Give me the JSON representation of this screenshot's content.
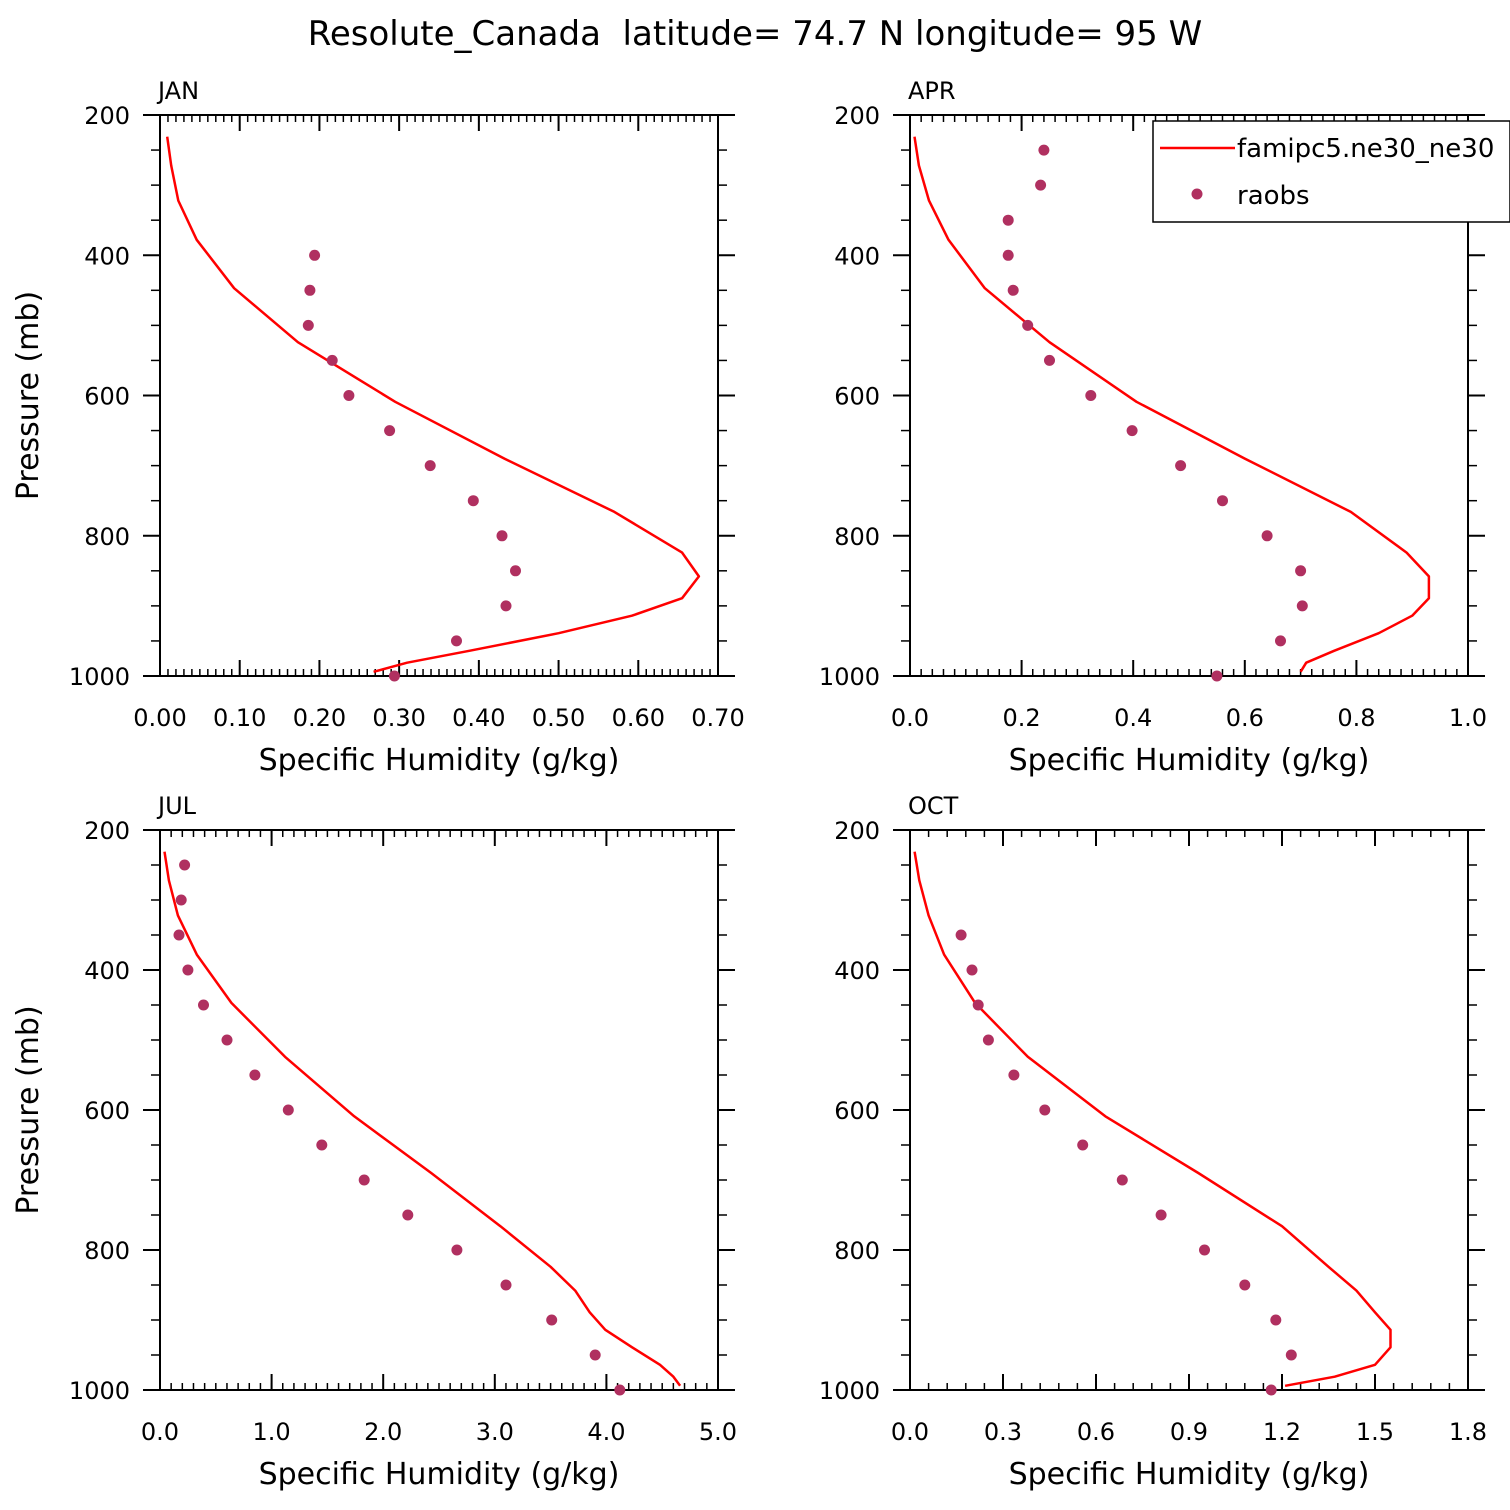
{
  "figure": {
    "title": "Resolute_Canada  latitude= 74.7 N longitude= 95 W"
  },
  "legend": {
    "model_label": "famipc5.ne30_ne30",
    "obs_label": "raobs",
    "model_color": "#ff0000",
    "obs_color": "#b03060"
  },
  "chart_data": [
    {
      "type": "line+scatter",
      "panel": "JAN",
      "xlabel": "Specific Humidity (g/kg)",
      "ylabel": "Pressure (mb)",
      "xlim": [
        0,
        0.7
      ],
      "ylim": [
        200,
        1000
      ],
      "xticks": [
        0,
        0.1,
        0.2,
        0.3,
        0.4,
        0.5,
        0.6,
        0.7
      ],
      "xtick_labels": [
        "0.00",
        "0.10",
        "0.20",
        "0.30",
        "0.40",
        "0.50",
        "0.60",
        "0.70"
      ],
      "x_minor_step": 0.01,
      "yticks": [
        200,
        400,
        600,
        800,
        1000
      ],
      "ytick_labels": [
        "200",
        "400",
        "600",
        "800",
        "1000"
      ],
      "model": [
        [
          0.009,
          231
        ],
        [
          0.014,
          272
        ],
        [
          0.023,
          322
        ],
        [
          0.046,
          378
        ],
        [
          0.093,
          447
        ],
        [
          0.173,
          524
        ],
        [
          0.295,
          609
        ],
        [
          0.432,
          690
        ],
        [
          0.57,
          766
        ],
        [
          0.655,
          824
        ],
        [
          0.676,
          858
        ],
        [
          0.655,
          889
        ],
        [
          0.592,
          914
        ],
        [
          0.5,
          939
        ],
        [
          0.388,
          964
        ],
        [
          0.31,
          981
        ],
        [
          0.268,
          994
        ]
      ],
      "obs": [
        [
          0.194,
          400
        ],
        [
          0.188,
          450
        ],
        [
          0.186,
          500
        ],
        [
          0.216,
          550
        ],
        [
          0.237,
          600
        ],
        [
          0.288,
          650
        ],
        [
          0.339,
          700
        ],
        [
          0.393,
          750
        ],
        [
          0.429,
          800
        ],
        [
          0.446,
          850
        ],
        [
          0.434,
          900
        ],
        [
          0.372,
          950
        ],
        [
          0.294,
          1000
        ]
      ]
    },
    {
      "type": "line+scatter",
      "panel": "APR",
      "xlabel": "Specific Humidity (g/kg)",
      "ylabel": "",
      "xlim": [
        0,
        1.0
      ],
      "ylim": [
        200,
        1000
      ],
      "xticks": [
        0,
        0.2,
        0.4,
        0.6,
        0.8,
        1.0
      ],
      "xtick_labels": [
        "0.0",
        "0.2",
        "0.4",
        "0.6",
        "0.8",
        "1.0"
      ],
      "x_minor_step": 0.02,
      "yticks": [
        200,
        400,
        600,
        800,
        1000
      ],
      "ytick_labels": [
        "200",
        "400",
        "600",
        "800",
        "1000"
      ],
      "model": [
        [
          0.008,
          231
        ],
        [
          0.016,
          272
        ],
        [
          0.034,
          322
        ],
        [
          0.069,
          378
        ],
        [
          0.134,
          447
        ],
        [
          0.25,
          524
        ],
        [
          0.406,
          609
        ],
        [
          0.6,
          690
        ],
        [
          0.79,
          766
        ],
        [
          0.89,
          824
        ],
        [
          0.93,
          858
        ],
        [
          0.93,
          889
        ],
        [
          0.9,
          914
        ],
        [
          0.84,
          939
        ],
        [
          0.76,
          964
        ],
        [
          0.71,
          981
        ],
        [
          0.7,
          994
        ]
      ],
      "obs": [
        [
          0.24,
          250
        ],
        [
          0.234,
          300
        ],
        [
          0.176,
          350
        ],
        [
          0.176,
          400
        ],
        [
          0.185,
          450
        ],
        [
          0.211,
          500
        ],
        [
          0.25,
          550
        ],
        [
          0.324,
          600
        ],
        [
          0.398,
          650
        ],
        [
          0.485,
          700
        ],
        [
          0.56,
          750
        ],
        [
          0.64,
          800
        ],
        [
          0.7,
          850
        ],
        [
          0.703,
          900
        ],
        [
          0.664,
          950
        ],
        [
          0.55,
          1000
        ]
      ]
    },
    {
      "type": "line+scatter",
      "panel": "JUL",
      "xlabel": "Specific Humidity (g/kg)",
      "ylabel": "Pressure (mb)",
      "xlim": [
        0,
        5.0
      ],
      "ylim": [
        200,
        1000
      ],
      "xticks": [
        0,
        1,
        2,
        3,
        4,
        5
      ],
      "xtick_labels": [
        "0.0",
        "1.0",
        "2.0",
        "3.0",
        "4.0",
        "5.0"
      ],
      "x_minor_step": 0.1,
      "yticks": [
        200,
        400,
        600,
        800,
        1000
      ],
      "ytick_labels": [
        "200",
        "400",
        "600",
        "800",
        "1000"
      ],
      "model": [
        [
          0.04,
          231
        ],
        [
          0.08,
          272
        ],
        [
          0.16,
          322
        ],
        [
          0.33,
          378
        ],
        [
          0.64,
          447
        ],
        [
          1.12,
          524
        ],
        [
          1.74,
          609
        ],
        [
          2.43,
          690
        ],
        [
          3.05,
          766
        ],
        [
          3.5,
          824
        ],
        [
          3.72,
          858
        ],
        [
          3.85,
          889
        ],
        [
          3.99,
          914
        ],
        [
          4.23,
          939
        ],
        [
          4.48,
          964
        ],
        [
          4.6,
          981
        ],
        [
          4.66,
          994
        ]
      ],
      "obs": [
        [
          0.22,
          250
        ],
        [
          0.19,
          300
        ],
        [
          0.17,
          350
        ],
        [
          0.25,
          400
        ],
        [
          0.39,
          450
        ],
        [
          0.6,
          500
        ],
        [
          0.85,
          550
        ],
        [
          1.15,
          600
        ],
        [
          1.45,
          650
        ],
        [
          1.83,
          700
        ],
        [
          2.22,
          750
        ],
        [
          2.66,
          800
        ],
        [
          3.1,
          850
        ],
        [
          3.51,
          900
        ],
        [
          3.9,
          950
        ],
        [
          4.12,
          1000
        ]
      ]
    },
    {
      "type": "line+scatter",
      "panel": "OCT",
      "xlabel": "Specific Humidity (g/kg)",
      "ylabel": "",
      "xlim": [
        0,
        1.8
      ],
      "ylim": [
        200,
        1000
      ],
      "xticks": [
        0,
        0.3,
        0.6,
        0.9,
        1.2,
        1.5,
        1.8
      ],
      "xtick_labels": [
        "0.0",
        "0.3",
        "0.6",
        "0.9",
        "1.2",
        "1.5",
        "1.8"
      ],
      "x_minor_step": 0.06,
      "yticks": [
        200,
        400,
        600,
        800,
        1000
      ],
      "ytick_labels": [
        "200",
        "400",
        "600",
        "800",
        "1000"
      ],
      "model": [
        [
          0.015,
          231
        ],
        [
          0.03,
          272
        ],
        [
          0.06,
          322
        ],
        [
          0.11,
          378
        ],
        [
          0.21,
          447
        ],
        [
          0.38,
          524
        ],
        [
          0.63,
          609
        ],
        [
          0.93,
          690
        ],
        [
          1.2,
          766
        ],
        [
          1.35,
          824
        ],
        [
          1.44,
          858
        ],
        [
          1.5,
          889
        ],
        [
          1.55,
          914
        ],
        [
          1.55,
          939
        ],
        [
          1.5,
          964
        ],
        [
          1.37,
          981
        ],
        [
          1.21,
          994
        ]
      ],
      "obs": [
        [
          0.165,
          350
        ],
        [
          0.2,
          400
        ],
        [
          0.22,
          450
        ],
        [
          0.253,
          500
        ],
        [
          0.335,
          550
        ],
        [
          0.435,
          600
        ],
        [
          0.557,
          650
        ],
        [
          0.685,
          700
        ],
        [
          0.81,
          750
        ],
        [
          0.95,
          800
        ],
        [
          1.08,
          850
        ],
        [
          1.18,
          900
        ],
        [
          1.23,
          950
        ],
        [
          1.165,
          1000
        ]
      ]
    }
  ]
}
